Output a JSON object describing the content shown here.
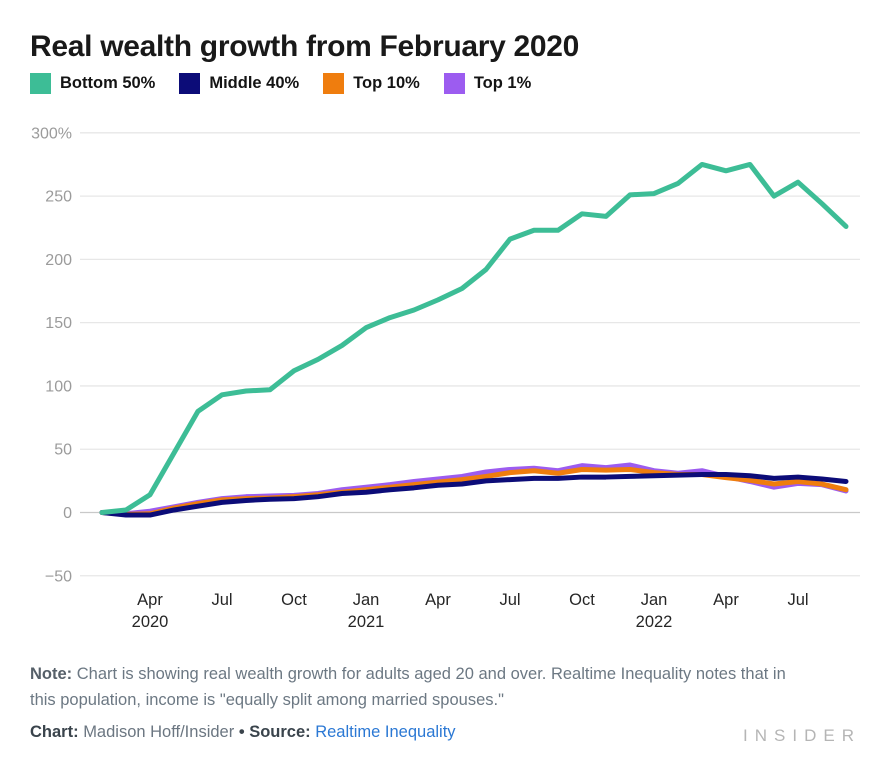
{
  "title": "Real wealth growth from February 2020",
  "legend": [
    {
      "id": "bottom-50",
      "label": "Bottom 50%",
      "color": "#3dbd96"
    },
    {
      "id": "middle-40",
      "label": "Middle 40%",
      "color": "#0c0c78"
    },
    {
      "id": "top-10",
      "label": "Top 10%",
      "color": "#ef7d0e"
    },
    {
      "id": "top-1",
      "label": "Top 1%",
      "color": "#9c5cf0"
    }
  ],
  "chart_data": {
    "type": "line",
    "title": "Real wealth growth from February 2020",
    "x_interval": "monthly",
    "x_range": [
      "2020-02",
      "2022-09"
    ],
    "ylim": [
      -50,
      300
    ],
    "grid": true,
    "legend_position": "top",
    "y_ticks": [
      {
        "value": 300,
        "label": "300%"
      },
      {
        "value": 250,
        "label": "250"
      },
      {
        "value": 200,
        "label": "200"
      },
      {
        "value": 150,
        "label": "150"
      },
      {
        "value": 100,
        "label": "100"
      },
      {
        "value": 50,
        "label": "50"
      },
      {
        "value": 0,
        "label": "0"
      },
      {
        "value": -50,
        "label": "−50"
      }
    ],
    "x_ticks": [
      {
        "month_index": 2,
        "label": "Apr",
        "year": "2020"
      },
      {
        "month_index": 5,
        "label": "Jul"
      },
      {
        "month_index": 8,
        "label": "Oct"
      },
      {
        "month_index": 11,
        "label": "Jan",
        "year": "2021"
      },
      {
        "month_index": 14,
        "label": "Apr"
      },
      {
        "month_index": 17,
        "label": "Jul"
      },
      {
        "month_index": 20,
        "label": "Oct"
      },
      {
        "month_index": 23,
        "label": "Jan",
        "year": "2022"
      },
      {
        "month_index": 26,
        "label": "Apr"
      },
      {
        "month_index": 29,
        "label": "Jul"
      }
    ],
    "series": [
      {
        "name": "Bottom 50%",
        "color": "#3dbd96",
        "values": [
          0,
          2,
          14,
          47,
          80,
          93,
          96,
          97,
          112,
          121,
          132,
          146,
          154,
          160,
          168,
          177,
          192,
          216,
          223,
          223,
          236,
          234,
          251,
          252,
          260,
          275,
          270,
          275,
          250,
          261,
          244,
          226
        ]
      },
      {
        "name": "Middle 40%",
        "color": "#0c0c78",
        "values": [
          0,
          -2,
          -2,
          2,
          5,
          8,
          9.5,
          10.5,
          11,
          12.5,
          15,
          16,
          18,
          19.5,
          21.5,
          22.5,
          25,
          26,
          27,
          27,
          28,
          28,
          28.5,
          29,
          29.5,
          30,
          30,
          29,
          27,
          28,
          26.5,
          24.5
        ]
      },
      {
        "name": "Top 10%",
        "color": "#ef7d0e",
        "values": [
          0,
          -1.5,
          -1,
          3.5,
          7,
          10,
          11,
          11.5,
          12.5,
          14,
          16,
          18,
          20,
          22,
          24,
          26,
          28.5,
          31.5,
          33,
          31,
          34,
          33.5,
          34,
          31.5,
          30,
          30,
          27.5,
          25.5,
          22.5,
          24.5,
          22.5,
          18
        ]
      },
      {
        "name": "Top 1%",
        "color": "#9c5cf0",
        "values": [
          0,
          -1,
          1,
          4.5,
          8,
          11,
          12.5,
          13,
          13.5,
          15,
          18,
          20,
          22,
          24.5,
          26.5,
          28.5,
          32,
          34,
          35,
          33,
          37,
          35.5,
          37.5,
          33,
          31,
          33,
          28.5,
          24.5,
          20,
          23,
          22,
          17
        ]
      }
    ]
  },
  "note": {
    "label": "Note:",
    "line1": "Chart is showing real wealth growth for adults aged 20 and over. Realtime Inequality notes that in",
    "line2": "this population, income is \"equally split among married spouses.\""
  },
  "credit": {
    "chart_label": "Chart:",
    "chart_value": "Madison Hoff/Insider",
    "bullet": "•",
    "source_label": "Source:",
    "source_link": "Realtime Inequality"
  },
  "logo": "INSIDER"
}
